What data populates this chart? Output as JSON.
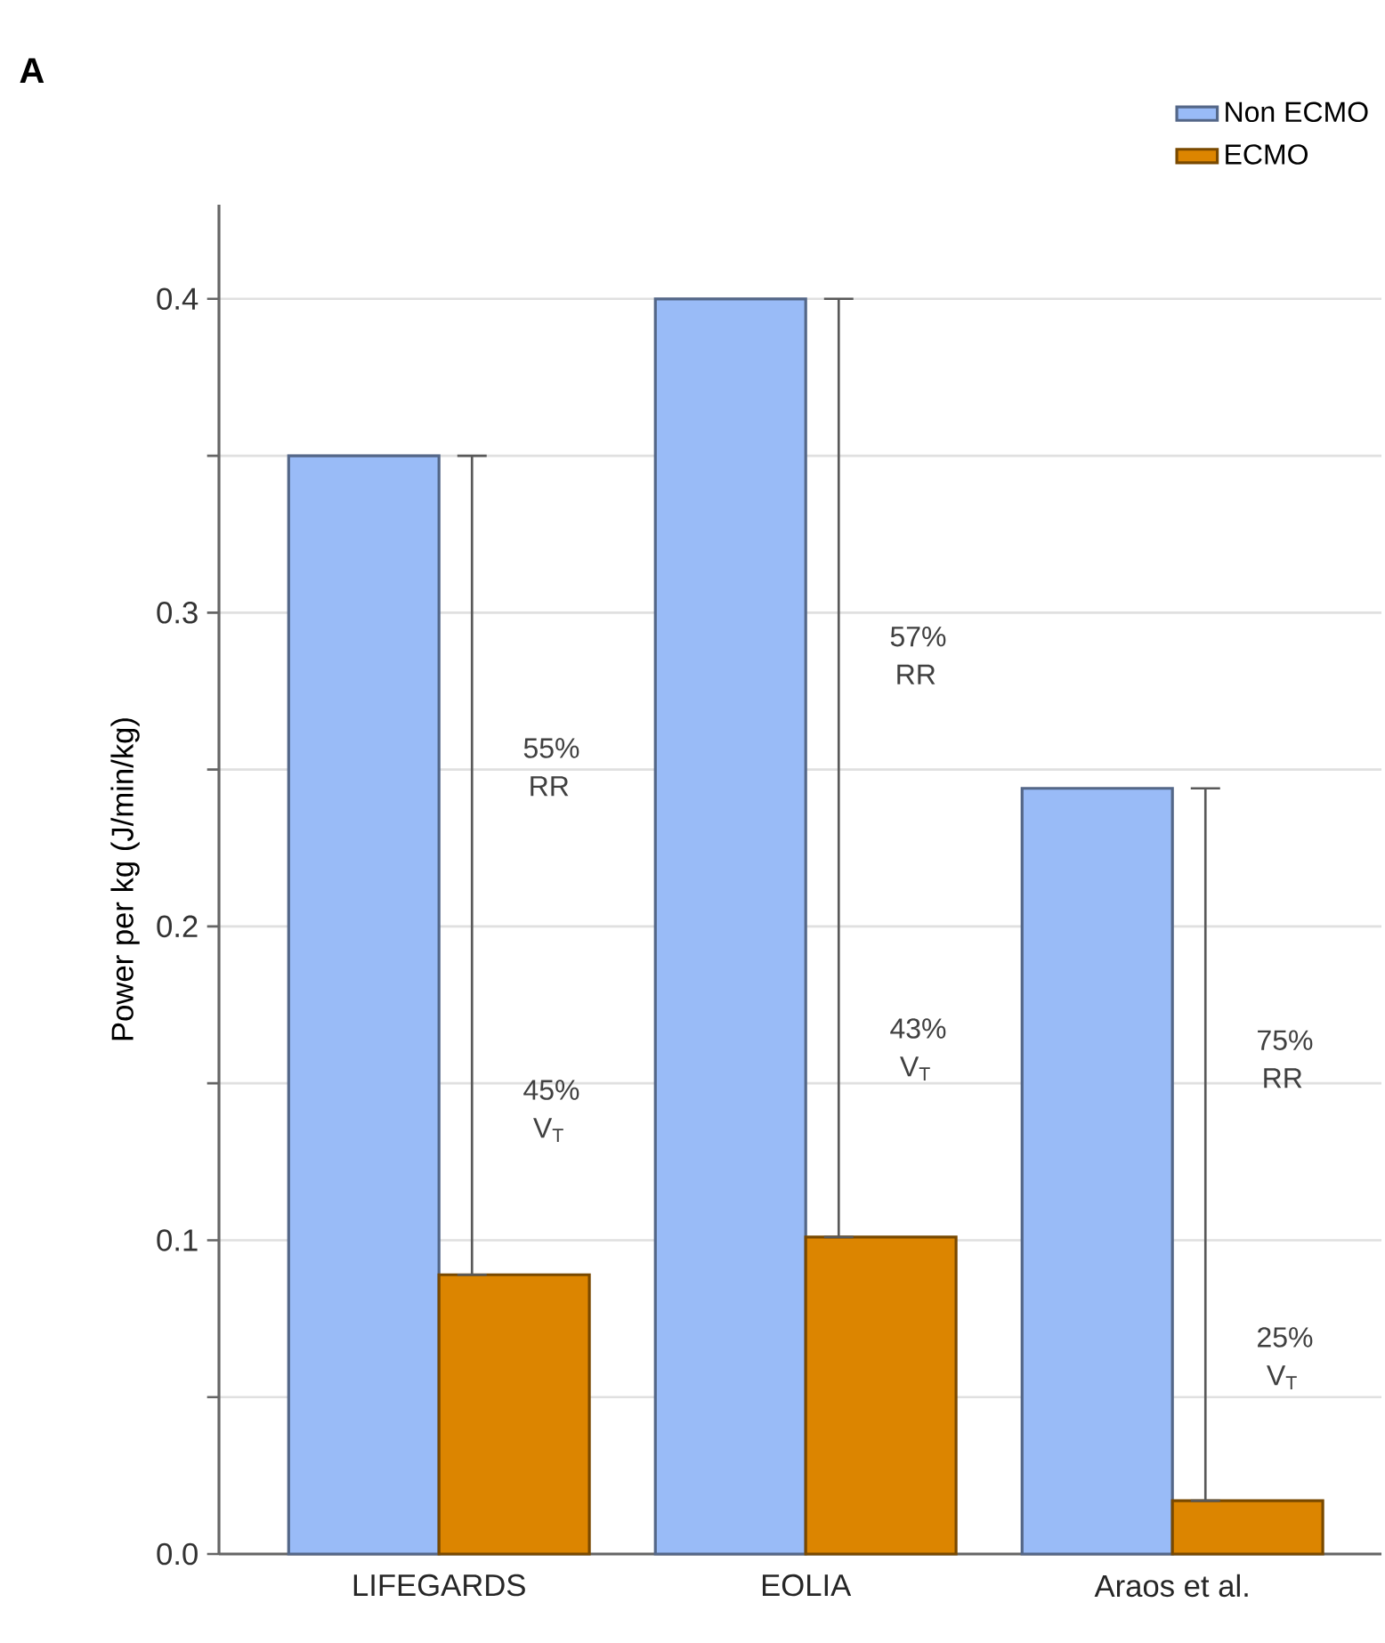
{
  "chart_data": {
    "type": "bar",
    "title": "A",
    "ylabel": "Power per kg (J/min/kg)",
    "categories": [
      "LIFEGARDS",
      "EOLIA",
      "Araos et al."
    ],
    "series": [
      {
        "name": "Non ECMO",
        "color": "#99bbf7",
        "values": [
          0.35,
          0.4,
          0.244
        ]
      },
      {
        "name": "ECMO",
        "color": "#dc8500",
        "values": [
          0.089,
          0.101,
          0.017
        ],
        "errors": [
          [
            0.089,
            0.35
          ],
          [
            0.101,
            0.4
          ],
          [
            0.017,
            0.244
          ]
        ]
      }
    ],
    "ylim": [
      0,
      0.43
    ],
    "yticks": [
      {
        "value": 0,
        "label": "0.0"
      },
      {
        "value": 0.05,
        "label": null
      },
      0.1,
      {
        "value": 0.15,
        "label": null
      },
      0.2,
      {
        "value": 0.25,
        "label": null
      },
      0.3,
      {
        "value": 0.35,
        "label": null
      },
      0.4
    ],
    "grid": "y",
    "legend": "top right",
    "annotations": [
      "55% RR",
      "45% V$_{T}$",
      "57% RR",
      "43% V$_{T}$",
      "75% RR",
      "25% V$_{T}$"
    ]
  }
}
